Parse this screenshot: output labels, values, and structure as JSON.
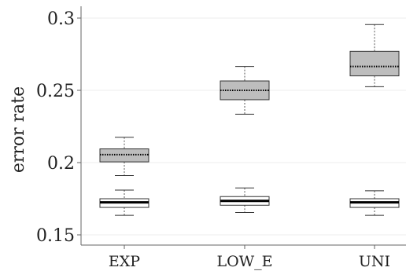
{
  "chart_data": {
    "type": "boxplot",
    "ylabel": "error rate",
    "ylim": [
      0.15,
      0.3
    ],
    "yticks": [
      {
        "value": 0.15,
        "label": "0.15"
      },
      {
        "value": 0.2,
        "label": "0.2"
      },
      {
        "value": 0.25,
        "label": "0.25"
      },
      {
        "value": 0.3,
        "label": "0.3"
      }
    ],
    "categories": [
      "EXP",
      "LOW_E",
      "UNI"
    ],
    "grid": true,
    "series": [
      {
        "fill": "#bdbdbd",
        "median_style": "dotted",
        "boxes": [
          {
            "whisker_low": 0.191,
            "q1": 0.2005,
            "median": 0.2055,
            "q3": 0.2095,
            "whisker_high": 0.2175
          },
          {
            "whisker_low": 0.2335,
            "q1": 0.2435,
            "median": 0.25,
            "q3": 0.2565,
            "whisker_high": 0.2665
          },
          {
            "whisker_low": 0.2525,
            "q1": 0.26,
            "median": 0.2665,
            "q3": 0.277,
            "whisker_high": 0.2955
          }
        ]
      },
      {
        "fill": "#ffffff",
        "median_style": "solid",
        "boxes": [
          {
            "whisker_low": 0.1635,
            "q1": 0.169,
            "median": 0.1725,
            "q3": 0.175,
            "whisker_high": 0.181
          },
          {
            "whisker_low": 0.1655,
            "q1": 0.1705,
            "median": 0.1735,
            "q3": 0.1765,
            "whisker_high": 0.1825
          },
          {
            "whisker_low": 0.1635,
            "q1": 0.169,
            "median": 0.1725,
            "q3": 0.175,
            "whisker_high": 0.1805
          }
        ]
      }
    ]
  }
}
